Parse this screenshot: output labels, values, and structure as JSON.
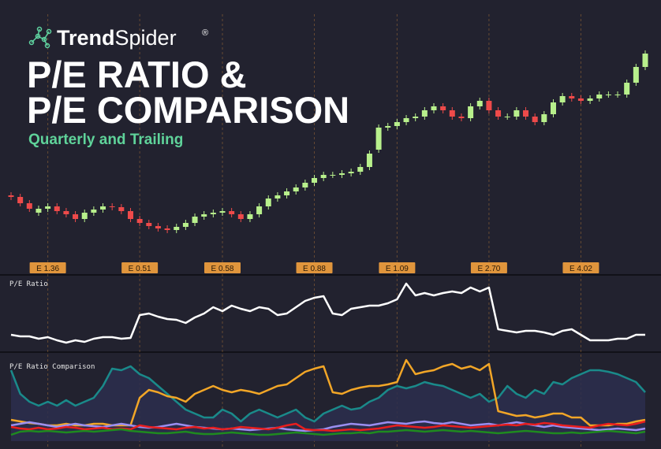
{
  "header": {
    "brand": [
      "Trend",
      "Spider"
    ],
    "registered": "®",
    "title": [
      "P/E RATIO &",
      "P/E COMPARISON"
    ],
    "subtitle": "Quarterly and Trailing"
  },
  "chart_data": [
    {
      "type": "candlestick",
      "up_color": "#b8f08c",
      "down_color": "#ee4a4a",
      "ylim": [
        0,
        300
      ],
      "open": [
        82,
        80,
        72,
        60,
        65,
        68,
        62,
        58,
        52,
        60,
        64,
        68,
        67,
        62,
        52,
        47,
        43,
        40,
        38,
        42,
        47,
        55,
        58,
        60,
        62,
        58,
        52,
        58,
        68,
        78,
        82,
        87,
        92,
        98,
        104,
        108,
        108,
        110,
        112,
        118,
        140,
        168,
        170,
        175,
        180,
        182,
        190,
        195,
        190,
        182,
        180,
        195,
        202,
        190,
        182,
        182,
        190,
        182,
        175,
        185,
        200,
        208,
        205,
        202,
        205,
        210,
        210,
        210,
        225,
        245
      ],
      "high": [
        86,
        84,
        76,
        69,
        72,
        72,
        66,
        62,
        64,
        68,
        72,
        72,
        71,
        66,
        56,
        51,
        47,
        44,
        46,
        51,
        59,
        62,
        64,
        66,
        66,
        62,
        62,
        72,
        82,
        86,
        91,
        96,
        102,
        108,
        112,
        112,
        114,
        116,
        122,
        139,
        172,
        174,
        179,
        184,
        186,
        194,
        199,
        199,
        194,
        186,
        199,
        206,
        206,
        194,
        186,
        194,
        194,
        186,
        189,
        204,
        212,
        212,
        209,
        209,
        214,
        214,
        214,
        229,
        249,
        266
      ],
      "low": [
        76,
        68,
        61,
        56,
        61,
        58,
        54,
        48,
        48,
        56,
        60,
        63,
        58,
        48,
        43,
        39,
        36,
        34,
        34,
        38,
        43,
        51,
        54,
        56,
        54,
        48,
        48,
        54,
        64,
        74,
        78,
        83,
        88,
        94,
        100,
        104,
        104,
        106,
        108,
        114,
        136,
        164,
        166,
        171,
        176,
        178,
        186,
        186,
        178,
        176,
        176,
        191,
        186,
        178,
        178,
        178,
        178,
        171,
        171,
        181,
        196,
        201,
        198,
        198,
        201,
        206,
        206,
        206,
        221,
        241
      ],
      "close": [
        80,
        72,
        65,
        65,
        68,
        62,
        58,
        52,
        60,
        64,
        68,
        67,
        62,
        52,
        47,
        43,
        40,
        38,
        42,
        47,
        55,
        58,
        60,
        62,
        58,
        52,
        58,
        68,
        78,
        82,
        87,
        92,
        98,
        104,
        108,
        108,
        110,
        112,
        118,
        135,
        168,
        170,
        175,
        180,
        182,
        190,
        195,
        190,
        182,
        180,
        195,
        202,
        190,
        182,
        182,
        190,
        182,
        175,
        185,
        200,
        208,
        205,
        202,
        205,
        210,
        210,
        210,
        225,
        245,
        262
      ],
      "earnings": [
        {
          "index": 4,
          "label": "E 1.36"
        },
        {
          "index": 14,
          "label": "E 0.51"
        },
        {
          "index": 23,
          "label": "E 0.58"
        },
        {
          "index": 33,
          "label": "E 0.88"
        },
        {
          "index": 42,
          "label": "E 1.09"
        },
        {
          "index": 52,
          "label": "E 2.70"
        },
        {
          "index": 62,
          "label": "E 4.02"
        }
      ]
    },
    {
      "type": "line",
      "title": "P/E Ratio",
      "ylim": [
        0,
        100
      ],
      "series": [
        {
          "color": "#ffffff",
          "values": [
            20,
            18,
            18,
            15,
            17,
            13,
            10,
            13,
            11,
            15,
            17,
            17,
            15,
            16,
            45,
            47,
            43,
            40,
            39,
            35,
            42,
            47,
            55,
            50,
            57,
            53,
            50,
            55,
            53,
            45,
            47,
            55,
            63,
            67,
            69,
            47,
            45,
            53,
            55,
            57,
            57,
            60,
            65,
            85,
            70,
            73,
            70,
            73,
            75,
            73,
            80,
            75,
            80,
            27,
            25,
            23,
            25,
            25,
            23,
            20,
            25,
            27,
            20,
            13,
            13,
            13,
            15,
            15,
            20,
            20
          ]
        }
      ]
    },
    {
      "type": "line",
      "title": "P/E Ratio Comparison",
      "ylim": [
        0,
        110
      ],
      "series": [
        {
          "color": "#1a8a8a",
          "area": true,
          "values": [
            90,
            60,
            50,
            45,
            50,
            45,
            52,
            45,
            50,
            55,
            70,
            92,
            90,
            95,
            85,
            80,
            70,
            60,
            50,
            40,
            35,
            30,
            30,
            40,
            35,
            25,
            35,
            40,
            35,
            30,
            35,
            40,
            30,
            25,
            35,
            40,
            45,
            40,
            42,
            50,
            55,
            65,
            70,
            67,
            70,
            75,
            72,
            70,
            65,
            60,
            55,
            60,
            50,
            55,
            70,
            60,
            55,
            65,
            60,
            75,
            72,
            80,
            85,
            90,
            90,
            88,
            85,
            80,
            75,
            62
          ]
        },
        {
          "color": "#f2a627",
          "values": [
            27,
            25,
            23,
            22,
            20,
            20,
            22,
            20,
            20,
            22,
            22,
            20,
            20,
            20,
            55,
            65,
            62,
            57,
            55,
            50,
            60,
            65,
            70,
            65,
            62,
            65,
            63,
            60,
            65,
            70,
            72,
            80,
            88,
            92,
            95,
            62,
            60,
            65,
            68,
            70,
            70,
            72,
            75,
            103,
            85,
            88,
            90,
            95,
            98,
            92,
            95,
            90,
            98,
            38,
            35,
            32,
            33,
            30,
            32,
            35,
            35,
            30,
            30,
            20,
            20,
            20,
            22,
            22,
            25,
            27
          ]
        },
        {
          "color": "#9a8ef0",
          "values": [
            20,
            22,
            24,
            22,
            20,
            18,
            20,
            22,
            20,
            19,
            18,
            20,
            22,
            20,
            18,
            17,
            18,
            20,
            22,
            20,
            18,
            17,
            16,
            15,
            16,
            15,
            14,
            15,
            16,
            17,
            15,
            14,
            13,
            14,
            15,
            18,
            20,
            22,
            21,
            20,
            22,
            24,
            23,
            22,
            24,
            25,
            23,
            22,
            24,
            22,
            20,
            21,
            22,
            20,
            22,
            24,
            22,
            20,
            18,
            20,
            18,
            17,
            16,
            15,
            14,
            15,
            16,
            15,
            14,
            16
          ]
        },
        {
          "color": "#e81e1e",
          "values": [
            18,
            16,
            15,
            17,
            15,
            16,
            18,
            17,
            15,
            16,
            17,
            15,
            16,
            15,
            20,
            18,
            17,
            16,
            15,
            17,
            18,
            16,
            17,
            15,
            16,
            18,
            17,
            16,
            15,
            17,
            20,
            22,
            15,
            14,
            14,
            13,
            14,
            15,
            14,
            15,
            16,
            18,
            20,
            19,
            18,
            17,
            18,
            20,
            19,
            18,
            17,
            18,
            19,
            20,
            21,
            20,
            22,
            21,
            23,
            22,
            20,
            19,
            18,
            17,
            20,
            22,
            21,
            20,
            22,
            25
          ]
        },
        {
          "color": "#1f8a1f",
          "values": [
            8,
            12,
            13,
            12,
            13,
            12,
            11,
            12,
            13,
            12,
            13,
            14,
            15,
            13,
            12,
            11,
            10,
            10,
            11,
            12,
            10,
            9,
            9,
            10,
            11,
            10,
            9,
            8,
            8,
            9,
            10,
            11,
            10,
            9,
            8,
            9,
            10,
            10,
            11,
            10,
            12,
            12,
            13,
            14,
            13,
            12,
            13,
            14,
            13,
            12,
            13,
            12,
            11,
            10,
            11,
            12,
            13,
            12,
            11,
            10,
            10,
            11,
            10,
            11,
            12,
            13,
            12,
            11,
            10,
            12
          ]
        }
      ]
    }
  ]
}
